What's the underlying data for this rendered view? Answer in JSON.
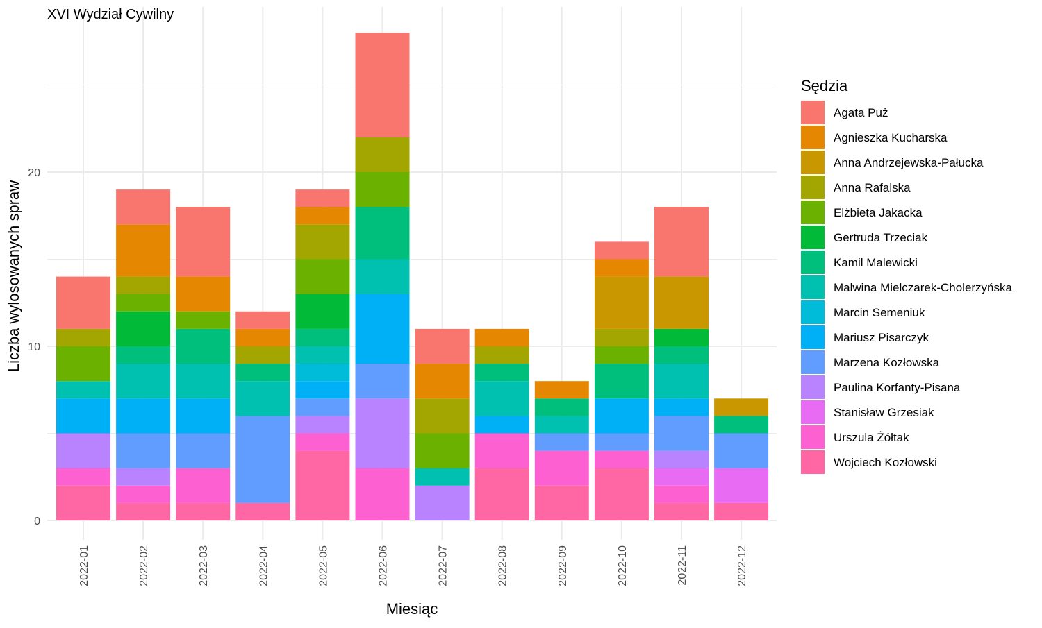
{
  "chart_data": {
    "type": "bar",
    "stacked": true,
    "title": "XVI Wydział Cywilny",
    "xlabel": "Miesiąc",
    "ylabel": "Liczba wylosowanych spraw",
    "ylim": [
      0,
      28
    ],
    "yticks": [
      0,
      10,
      20
    ],
    "grid": true,
    "legend_title": "Sędzia",
    "legend_position": "right",
    "categories": [
      "2022-01",
      "2022-02",
      "2022-03",
      "2022-04",
      "2022-05",
      "2022-06",
      "2022-07",
      "2022-08",
      "2022-09",
      "2022-10",
      "2022-11",
      "2022-12"
    ],
    "series": [
      {
        "name": "Agata Puż",
        "color": "#F8766D",
        "values": [
          3,
          2,
          4,
          1,
          1,
          6,
          2,
          0,
          0,
          1,
          4,
          0
        ]
      },
      {
        "name": "Agnieszka Kucharska",
        "color": "#E58700",
        "values": [
          0,
          3,
          2,
          1,
          1,
          0,
          2,
          1,
          1,
          1,
          0,
          0
        ]
      },
      {
        "name": "Anna Andrzejewska-Pałucka",
        "color": "#C99800",
        "values": [
          0,
          0,
          0,
          0,
          0,
          0,
          0,
          0,
          0,
          3,
          3,
          1
        ]
      },
      {
        "name": "Anna Rafalska",
        "color": "#A3A500",
        "values": [
          1,
          1,
          0,
          1,
          2,
          2,
          2,
          1,
          0,
          1,
          0,
          0
        ]
      },
      {
        "name": "Elżbieta Jakacka",
        "color": "#6BB100",
        "values": [
          2,
          1,
          1,
          0,
          2,
          2,
          2,
          0,
          0,
          1,
          0,
          0
        ]
      },
      {
        "name": "Gertruda Trzeciak",
        "color": "#00BA38",
        "values": [
          0,
          2,
          0,
          0,
          2,
          0,
          0,
          0,
          0,
          0,
          1,
          0
        ]
      },
      {
        "name": "Kamil Malewicki",
        "color": "#00BF7D",
        "values": [
          0,
          1,
          2,
          1,
          1,
          3,
          0,
          1,
          1,
          2,
          1,
          1
        ]
      },
      {
        "name": "Malwina Mielczarek-Cholerzyńska",
        "color": "#00C0AF",
        "values": [
          1,
          2,
          2,
          2,
          1,
          2,
          1,
          2,
          1,
          0,
          2,
          0
        ]
      },
      {
        "name": "Marcin Semeniuk",
        "color": "#00BCD8",
        "values": [
          0,
          0,
          0,
          0,
          1,
          0,
          0,
          0,
          0,
          0,
          0,
          0
        ]
      },
      {
        "name": "Mariusz Pisarczyk",
        "color": "#00B0F6",
        "values": [
          2,
          2,
          2,
          0,
          1,
          4,
          0,
          1,
          0,
          2,
          1,
          0
        ]
      },
      {
        "name": "Marzena Kozłowska",
        "color": "#619CFF",
        "values": [
          0,
          2,
          2,
          5,
          1,
          2,
          0,
          0,
          1,
          1,
          2,
          2
        ]
      },
      {
        "name": "Paulina Korfanty-Pisana",
        "color": "#B983FF",
        "values": [
          2,
          1,
          0,
          0,
          1,
          4,
          2,
          0,
          0,
          0,
          1,
          0
        ]
      },
      {
        "name": "Stanisław Grzesiak",
        "color": "#E76BF3",
        "values": [
          0,
          0,
          0,
          0,
          0,
          0,
          0,
          0,
          0,
          0,
          1,
          2
        ]
      },
      {
        "name": "Urszula Żółtak",
        "color": "#FD61D1",
        "values": [
          1,
          1,
          2,
          0,
          1,
          3,
          0,
          2,
          2,
          1,
          1,
          0
        ]
      },
      {
        "name": "Wojciech Kozłowski",
        "color": "#FF67A4",
        "values": [
          2,
          1,
          1,
          1,
          4,
          0,
          0,
          3,
          2,
          3,
          1,
          1
        ]
      }
    ]
  }
}
